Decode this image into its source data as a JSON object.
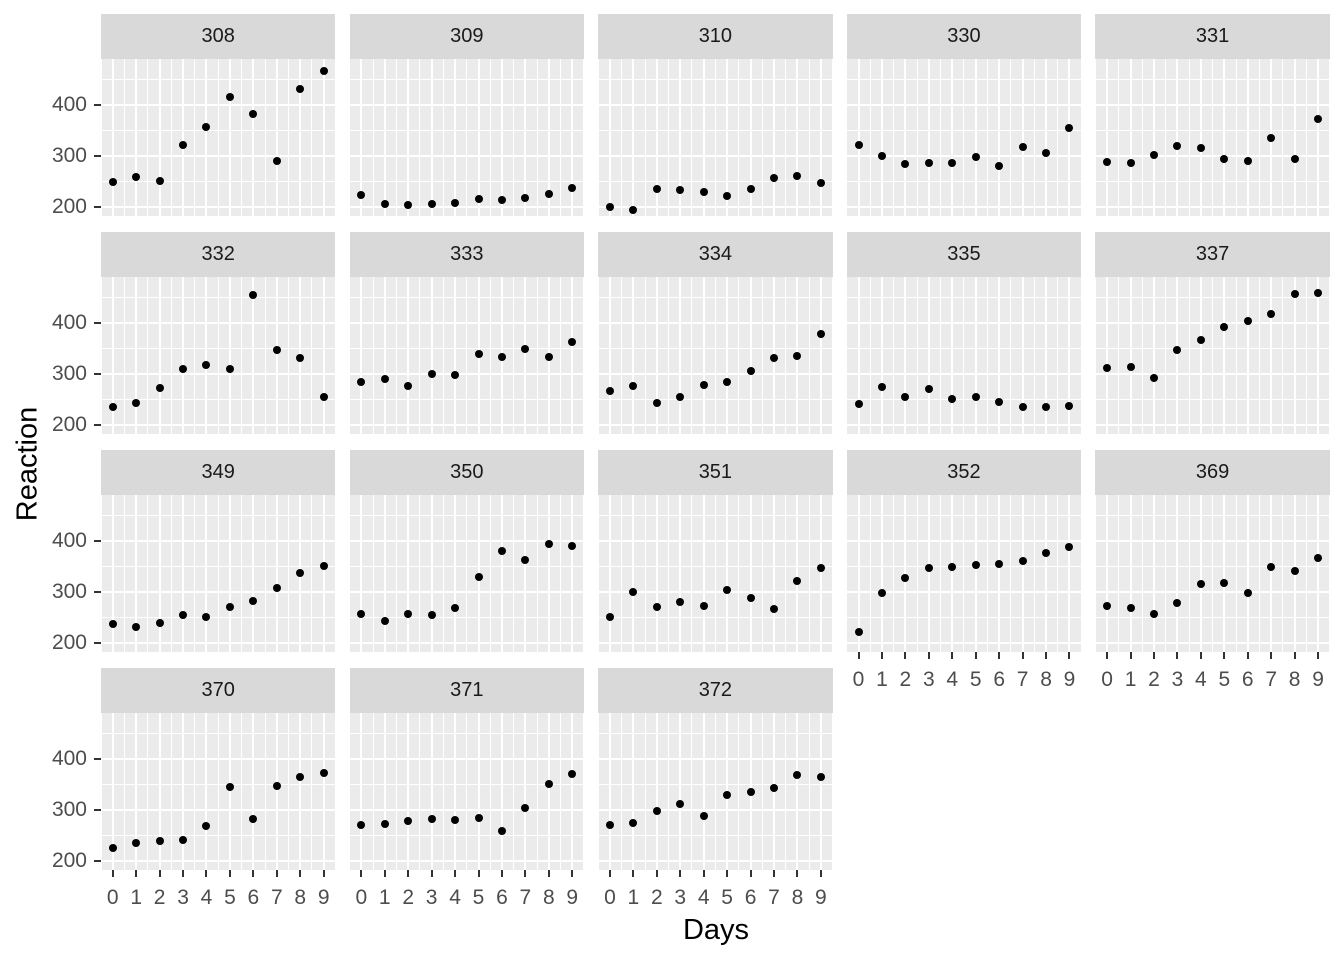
{
  "chart_data": {
    "type": "scatter",
    "title": "",
    "xlabel": "Days",
    "ylabel": "Reaction",
    "facet_by": "Subject",
    "grid": true,
    "legend": "none",
    "x": [
      0,
      1,
      2,
      3,
      4,
      5,
      6,
      7,
      8,
      9
    ],
    "x_ticks": [
      0,
      1,
      2,
      3,
      4,
      5,
      6,
      7,
      8,
      9
    ],
    "y_ticks": [
      200,
      300,
      400
    ],
    "y_minor": [
      250,
      350,
      450
    ],
    "xlim": [
      -0.5,
      9.5
    ],
    "ylim": [
      182,
      490
    ],
    "facets_per_row": 5,
    "facets": [
      {
        "subject": "308",
        "values": [
          249.6,
          258.7,
          250.8,
          321.4,
          356.9,
          414.7,
          382.2,
          290.1,
          430.6,
          466.4
        ]
      },
      {
        "subject": "309",
        "values": [
          222.7,
          205.3,
          203.0,
          204.7,
          207.7,
          216.0,
          213.6,
          217.7,
          224.3,
          237.3
        ]
      },
      {
        "subject": "310",
        "values": [
          199.1,
          194.3,
          234.3,
          232.8,
          229.3,
          220.5,
          235.4,
          255.8,
          261.0,
          247.5
        ]
      },
      {
        "subject": "330",
        "values": [
          321.5,
          300.4,
          283.9,
          285.1,
          285.8,
          297.6,
          280.2,
          318.3,
          305.4,
          354.0
        ]
      },
      {
        "subject": "331",
        "values": [
          287.6,
          285.0,
          301.8,
          320.1,
          316.3,
          293.3,
          290.1,
          334.8,
          293.7,
          371.6
        ]
      },
      {
        "subject": "332",
        "values": [
          234.9,
          242.8,
          273.0,
          309.8,
          317.5,
          310.0,
          454.2,
          346.8,
          330.3,
          253.9
        ]
      },
      {
        "subject": "333",
        "values": [
          283.8,
          289.6,
          276.8,
          299.8,
          297.2,
          338.2,
          332.3,
          348.8,
          333.4,
          362.0
        ]
      },
      {
        "subject": "334",
        "values": [
          265.5,
          276.2,
          243.4,
          254.7,
          279.0,
          284.2,
          305.5,
          331.5,
          335.7,
          377.3
        ]
      },
      {
        "subject": "335",
        "values": [
          241.6,
          273.9,
          254.5,
          270.8,
          251.5,
          254.6,
          245.5,
          235.3,
          235.8,
          237.2
        ]
      },
      {
        "subject": "337",
        "values": [
          312.4,
          313.8,
          291.6,
          346.1,
          365.7,
          391.8,
          404.3,
          416.7,
          455.9,
          458.9
        ]
      },
      {
        "subject": "349",
        "values": [
          236.1,
          230.3,
          238.9,
          254.9,
          250.7,
          269.8,
          281.6,
          308.1,
          336.3,
          351.6
        ]
      },
      {
        "subject": "350",
        "values": [
          256.3,
          243.5,
          256.2,
          255.5,
          268.9,
          329.7,
          379.4,
          362.9,
          394.5,
          389.1
        ]
      },
      {
        "subject": "351",
        "values": [
          250.5,
          300.1,
          269.9,
          280.6,
          271.8,
          304.6,
          287.7,
          266.6,
          321.5,
          347.6
        ]
      },
      {
        "subject": "352",
        "values": [
          221.7,
          298.2,
          326.9,
          346.9,
          348.7,
          352.8,
          354.4,
          360.4,
          375.6,
          388.5
        ]
      },
      {
        "subject": "369",
        "values": [
          271.9,
          268.4,
          257.2,
          277.7,
          314.8,
          317.5,
          298.4,
          348.8,
          340.3,
          366.5
        ]
      },
      {
        "subject": "370",
        "values": [
          225.3,
          234.5,
          238.9,
          240.5,
          267.5,
          344.2,
          281.1,
          347.6,
          365.2,
          372.2
        ]
      },
      {
        "subject": "371",
        "values": [
          269.9,
          272.1,
          277.8,
          281.8,
          279.6,
          284.6,
          259.3,
          304.6,
          350.8,
          369.5
        ]
      },
      {
        "subject": "372",
        "values": [
          269.4,
          273.5,
          297.6,
          310.6,
          287.2,
          329.6,
          334.5,
          343.2,
          369.1,
          364.1
        ]
      }
    ],
    "colors": {
      "panel_bg": "#ebebeb",
      "strip_bg": "#d9d9d9",
      "grid": "#ffffff",
      "point": "#000000",
      "tick_label": "#4d4d4d",
      "tick_mark": "#333333",
      "strip_text": "#1a1a1a",
      "axis_title": "#000000"
    }
  }
}
